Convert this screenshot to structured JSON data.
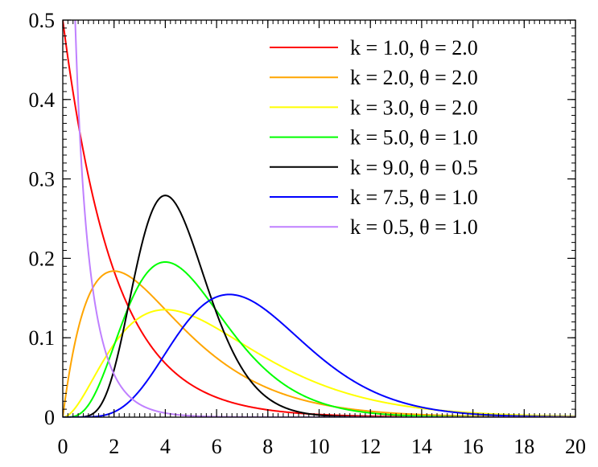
{
  "chart_data": {
    "type": "line",
    "title": "",
    "xlabel": "",
    "ylabel": "",
    "xlim": [
      0,
      20
    ],
    "ylim": [
      0,
      0.5
    ],
    "x_ticks": [
      0,
      2,
      4,
      6,
      8,
      10,
      12,
      14,
      16,
      18,
      20
    ],
    "x_tick_labels": [
      "0",
      "2",
      "4",
      "6",
      "8",
      "10",
      "12",
      "14",
      "16",
      "18",
      "20"
    ],
    "y_ticks": [
      0,
      0.1,
      0.2,
      0.3,
      0.4,
      0.5
    ],
    "y_tick_labels": [
      "0",
      "0.1",
      "0.2",
      "0.3",
      "0.4",
      "0.5"
    ],
    "grid": false,
    "legend_position": "top-right",
    "series": [
      {
        "name": "k = 1.0, θ = 2.0",
        "k": 1.0,
        "theta": 2.0,
        "color": "#ff0000"
      },
      {
        "name": "k = 2.0, θ = 2.0",
        "k": 2.0,
        "theta": 2.0,
        "color": "#ffa500"
      },
      {
        "name": "k = 3.0, θ = 2.0",
        "k": 3.0,
        "theta": 2.0,
        "color": "#ffff00"
      },
      {
        "name": "k = 5.0, θ = 1.0",
        "k": 5.0,
        "theta": 1.0,
        "color": "#00ff00"
      },
      {
        "name": "k = 9.0, θ = 0.5",
        "k": 9.0,
        "theta": 0.5,
        "color": "#000000"
      },
      {
        "name": "k = 7.5, θ = 1.0",
        "k": 7.5,
        "theta": 1.0,
        "color": "#0000ff"
      },
      {
        "name": "k = 0.5, θ = 1.0",
        "k": 0.5,
        "theta": 1.0,
        "color": "#bf80ff"
      }
    ]
  }
}
